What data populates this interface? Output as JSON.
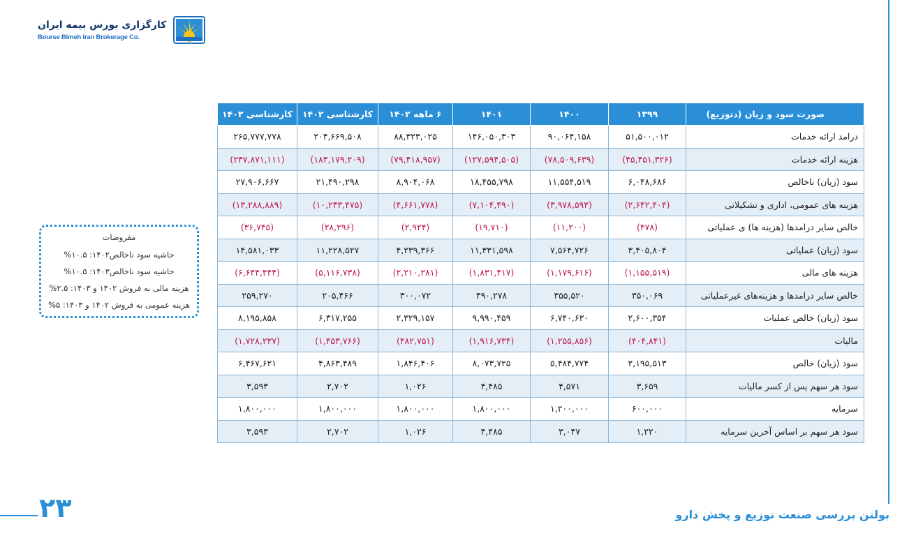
{
  "logo": {
    "name_fa": "کارگزاری بورس بیمه ایران",
    "name_en": "Bourse Bimeh Iran Brokerage Co."
  },
  "table": {
    "headers": [
      "صورت سود و زیان (دتوزیع)",
      "۱۳۹۹",
      "۱۴۰۰",
      "۱۴۰۱",
      "۶ ماهه ۱۴۰۲",
      "کارشناسی ۱۴۰۲",
      "کارشناسی ۱۴۰۳"
    ],
    "rows": [
      {
        "label": "درامد ارائه خدمات",
        "values": [
          "۵۱,۵۰۰,۰۱۲",
          "۹۰,۰۶۴,۱۵۸",
          "۱۴۶,۰۵۰,۳۰۳",
          "۸۸,۳۲۳,۰۲۵",
          "۲۰۴,۶۶۹,۵۰۸",
          "۲۶۵,۷۷۷,۷۷۸"
        ]
      },
      {
        "label": "هزینه ارائه خدمات",
        "values": [
          "(۴۵,۴۵۱,۳۲۶)",
          "(۷۸,۵۰۹,۶۳۹)",
          "(۱۲۷,۵۹۴,۵۰۵)",
          "(۷۹,۴۱۸,۹۵۷)",
          "(۱۸۳,۱۷۹,۲۰۹)",
          "(۲۳۷,۸۷۱,۱۱۱)"
        ]
      },
      {
        "label": "سود (زیان) ناخالص",
        "values": [
          "۶,۰۴۸,۶۸۶",
          "۱۱,۵۵۴,۵۱۹",
          "۱۸,۴۵۵,۷۹۸",
          "۸,۹۰۴,۰۶۸",
          "۲۱,۴۹۰,۲۹۸",
          "۲۷,۹۰۶,۶۶۷"
        ]
      },
      {
        "label": "هزینه های عمومی، اداری و تشکیلاتی",
        "values": [
          "(۲,۶۴۲,۴۰۴)",
          "(۳,۹۷۸,۵۹۳)",
          "(۷,۱۰۴,۴۹۰)",
          "(۴,۶۶۱,۷۷۸)",
          "(۱۰,۲۳۳,۴۷۵)",
          "(۱۳,۲۸۸,۸۸۹)"
        ]
      },
      {
        "label": "خالص سایر درامدها (هزینه ها) ی عملیاتی",
        "values": [
          "(۴۷۸)",
          "(۱۱,۲۰۰)",
          "(۱۹,۷۱۰)",
          "(۲,۹۲۴)",
          "(۲۸,۲۹۶)",
          "(۳۶,۷۴۵)"
        ]
      },
      {
        "label": "سود (زیان) عملیاتی",
        "values": [
          "۳,۴۰۵,۸۰۴",
          "۷,۵۶۴,۷۲۶",
          "۱۱,۳۳۱,۵۹۸",
          "۴,۲۳۹,۳۶۶",
          "۱۱,۲۲۸,۵۲۷",
          "۱۴,۵۸۱,۰۳۳"
        ]
      },
      {
        "label": "هزینه های مالی",
        "values": [
          "(۱,۱۵۵,۵۱۹)",
          "(۱,۱۷۹,۶۱۶)",
          "(۱,۸۳۱,۴۱۷)",
          "(۲,۲۱۰,۲۸۱)",
          "(۵,۱۱۶,۷۳۸)",
          "(۶,۶۴۴,۴۴۴)"
        ]
      },
      {
        "label": "خالص سایر درامدها و هزینه‌های غیرعملیاتی",
        "values": [
          "۳۵۰,۰۶۹",
          "۳۵۵,۵۲۰",
          "۴۹۰,۲۷۸",
          "۳۰۰,۰۷۲",
          "۲۰۵,۴۶۶",
          "۲۵۹,۲۷۰"
        ]
      },
      {
        "label": "سود (زیان) خالص عملیات",
        "values": [
          "۲,۶۰۰,۳۵۴",
          "۶,۷۴۰,۶۳۰",
          "۹,۹۹۰,۴۵۹",
          "۲,۳۲۹,۱۵۷",
          "۶,۳۱۷,۲۵۵",
          "۸,۱۹۵,۸۵۸"
        ]
      },
      {
        "label": "مالیات",
        "values": [
          "(۴۰۴,۸۴۱)",
          "(۱,۲۵۵,۸۵۶)",
          "(۱,۹۱۶,۷۳۴)",
          "(۴۸۲,۷۵۱)",
          "(۱,۴۵۳,۷۶۶)",
          "(۱,۷۲۸,۲۳۷)"
        ]
      },
      {
        "label": "سود (زیان) خالص",
        "values": [
          "۲,۱۹۵,۵۱۳",
          "۵,۴۸۴,۷۷۴",
          "۸,۰۷۳,۷۲۵",
          "۱,۸۴۶,۴۰۶",
          "۴,۸۶۳,۴۸۹",
          "۶,۴۶۷,۶۲۱"
        ]
      },
      {
        "label": "سود هر سهم پس از کسر مالیات",
        "values": [
          "۳,۶۵۹",
          "۴,۵۷۱",
          "۴,۴۸۵",
          "۱,۰۲۶",
          "۲,۷۰۲",
          "۳,۵۹۳"
        ]
      },
      {
        "label": "سرمایه",
        "values": [
          "۶۰۰,۰۰۰",
          "۱,۲۰۰,۰۰۰",
          "۱,۸۰۰,۰۰۰",
          "۱,۸۰۰,۰۰۰",
          "۱,۸۰۰,۰۰۰",
          "۱,۸۰۰,۰۰۰"
        ]
      },
      {
        "label": "سود هر سهم بر اساس آخرین سرمایه",
        "values": [
          "۱,۲۲۰",
          "۳,۰۴۷",
          "۴,۴۸۵",
          "۱,۰۲۶",
          "۲,۷۰۲",
          "۳,۵۹۳"
        ]
      }
    ]
  },
  "assumptions": {
    "title": "مفروضات",
    "lines": [
      "حاشیه سود ناخالص۱۴۰۲: ۱۰.۵%",
      "حاشیه سود ناخالص۱۴۰۳: ۱۰.۵%",
      "هزینه مالی به فروش ۱۴۰۲ و ۱۴۰۳: ۲.۵%",
      "هزینه عمومی به فروش ۱۴۰۲ و ۱۴۰۳: ۵%"
    ]
  },
  "footer": {
    "page_number": "۲۳",
    "title": "بولتن بررسی صنعت توزیع و پخش دارو"
  },
  "colors": {
    "accent": "#2a8fd6",
    "negative": "#c0184a",
    "row_shade": "#e4eef7",
    "logo_navy": "#14376e"
  }
}
